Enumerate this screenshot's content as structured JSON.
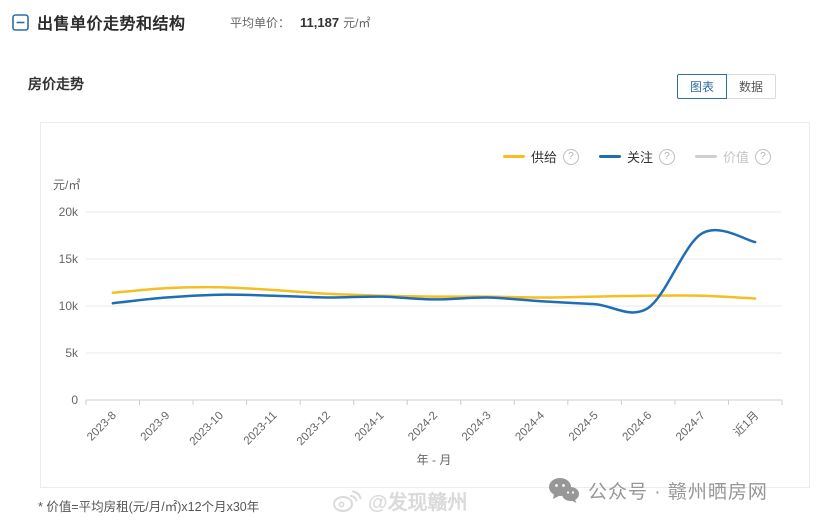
{
  "header": {
    "title": "出售单价走势和结构",
    "avg_label": "平均单价：",
    "avg_value": "11,187",
    "avg_unit": "元/㎡"
  },
  "section": {
    "title": "房价走势",
    "view_toggle": {
      "chart_label": "图表",
      "data_label": "数据",
      "active": "图表",
      "accent_color": "#2E6DA4"
    }
  },
  "legend": [
    {
      "label": "供给",
      "color": "#F5BE23",
      "enabled": true,
      "help": "?"
    },
    {
      "label": "关注",
      "color": "#1F6EB5",
      "enabled": true,
      "help": "?"
    },
    {
      "label": "价值",
      "color": "#CFCFCF",
      "enabled": false,
      "help": "?"
    }
  ],
  "chart_data": {
    "type": "line",
    "title": "房价走势",
    "xlabel": "年 - 月",
    "ylabel": "元/㎡",
    "ylim": [
      0,
      20000
    ],
    "ytick_values": [
      0,
      5000,
      10000,
      15000,
      20000
    ],
    "ytick_labels": [
      "0",
      "5k",
      "10k",
      "15k",
      "20k"
    ],
    "grid": true,
    "smooth": true,
    "legend_position": "top-right",
    "categories": [
      "2023-8",
      "2023-9",
      "2023-10",
      "2023-11",
      "2023-12",
      "2024-1",
      "2024-2",
      "2024-3",
      "2024-4",
      "2024-5",
      "2024-6",
      "2024-7",
      "近1月"
    ],
    "series": [
      {
        "name": "供给",
        "color": "#F5BE23",
        "visible": true,
        "values": [
          11400,
          11900,
          12000,
          11700,
          11300,
          11100,
          11000,
          11000,
          10900,
          11000,
          11100,
          11100,
          10800
        ]
      },
      {
        "name": "关注",
        "color": "#1F6EB5",
        "visible": true,
        "values": [
          10300,
          10900,
          11200,
          11100,
          10900,
          11000,
          10700,
          10900,
          10500,
          10200,
          9800,
          17700,
          16800
        ]
      },
      {
        "name": "价值",
        "color": "#CFCFCF",
        "visible": false,
        "values": null
      }
    ]
  },
  "footnote": "* 价值=平均房租(元/月/㎡)x12个月x30年",
  "watermarks": {
    "weibo": {
      "icon": "weibo-icon",
      "text": "@发现赣州"
    },
    "wechat": {
      "icon": "wechat-icon",
      "text": "公众号 · 赣州晒房网"
    }
  }
}
